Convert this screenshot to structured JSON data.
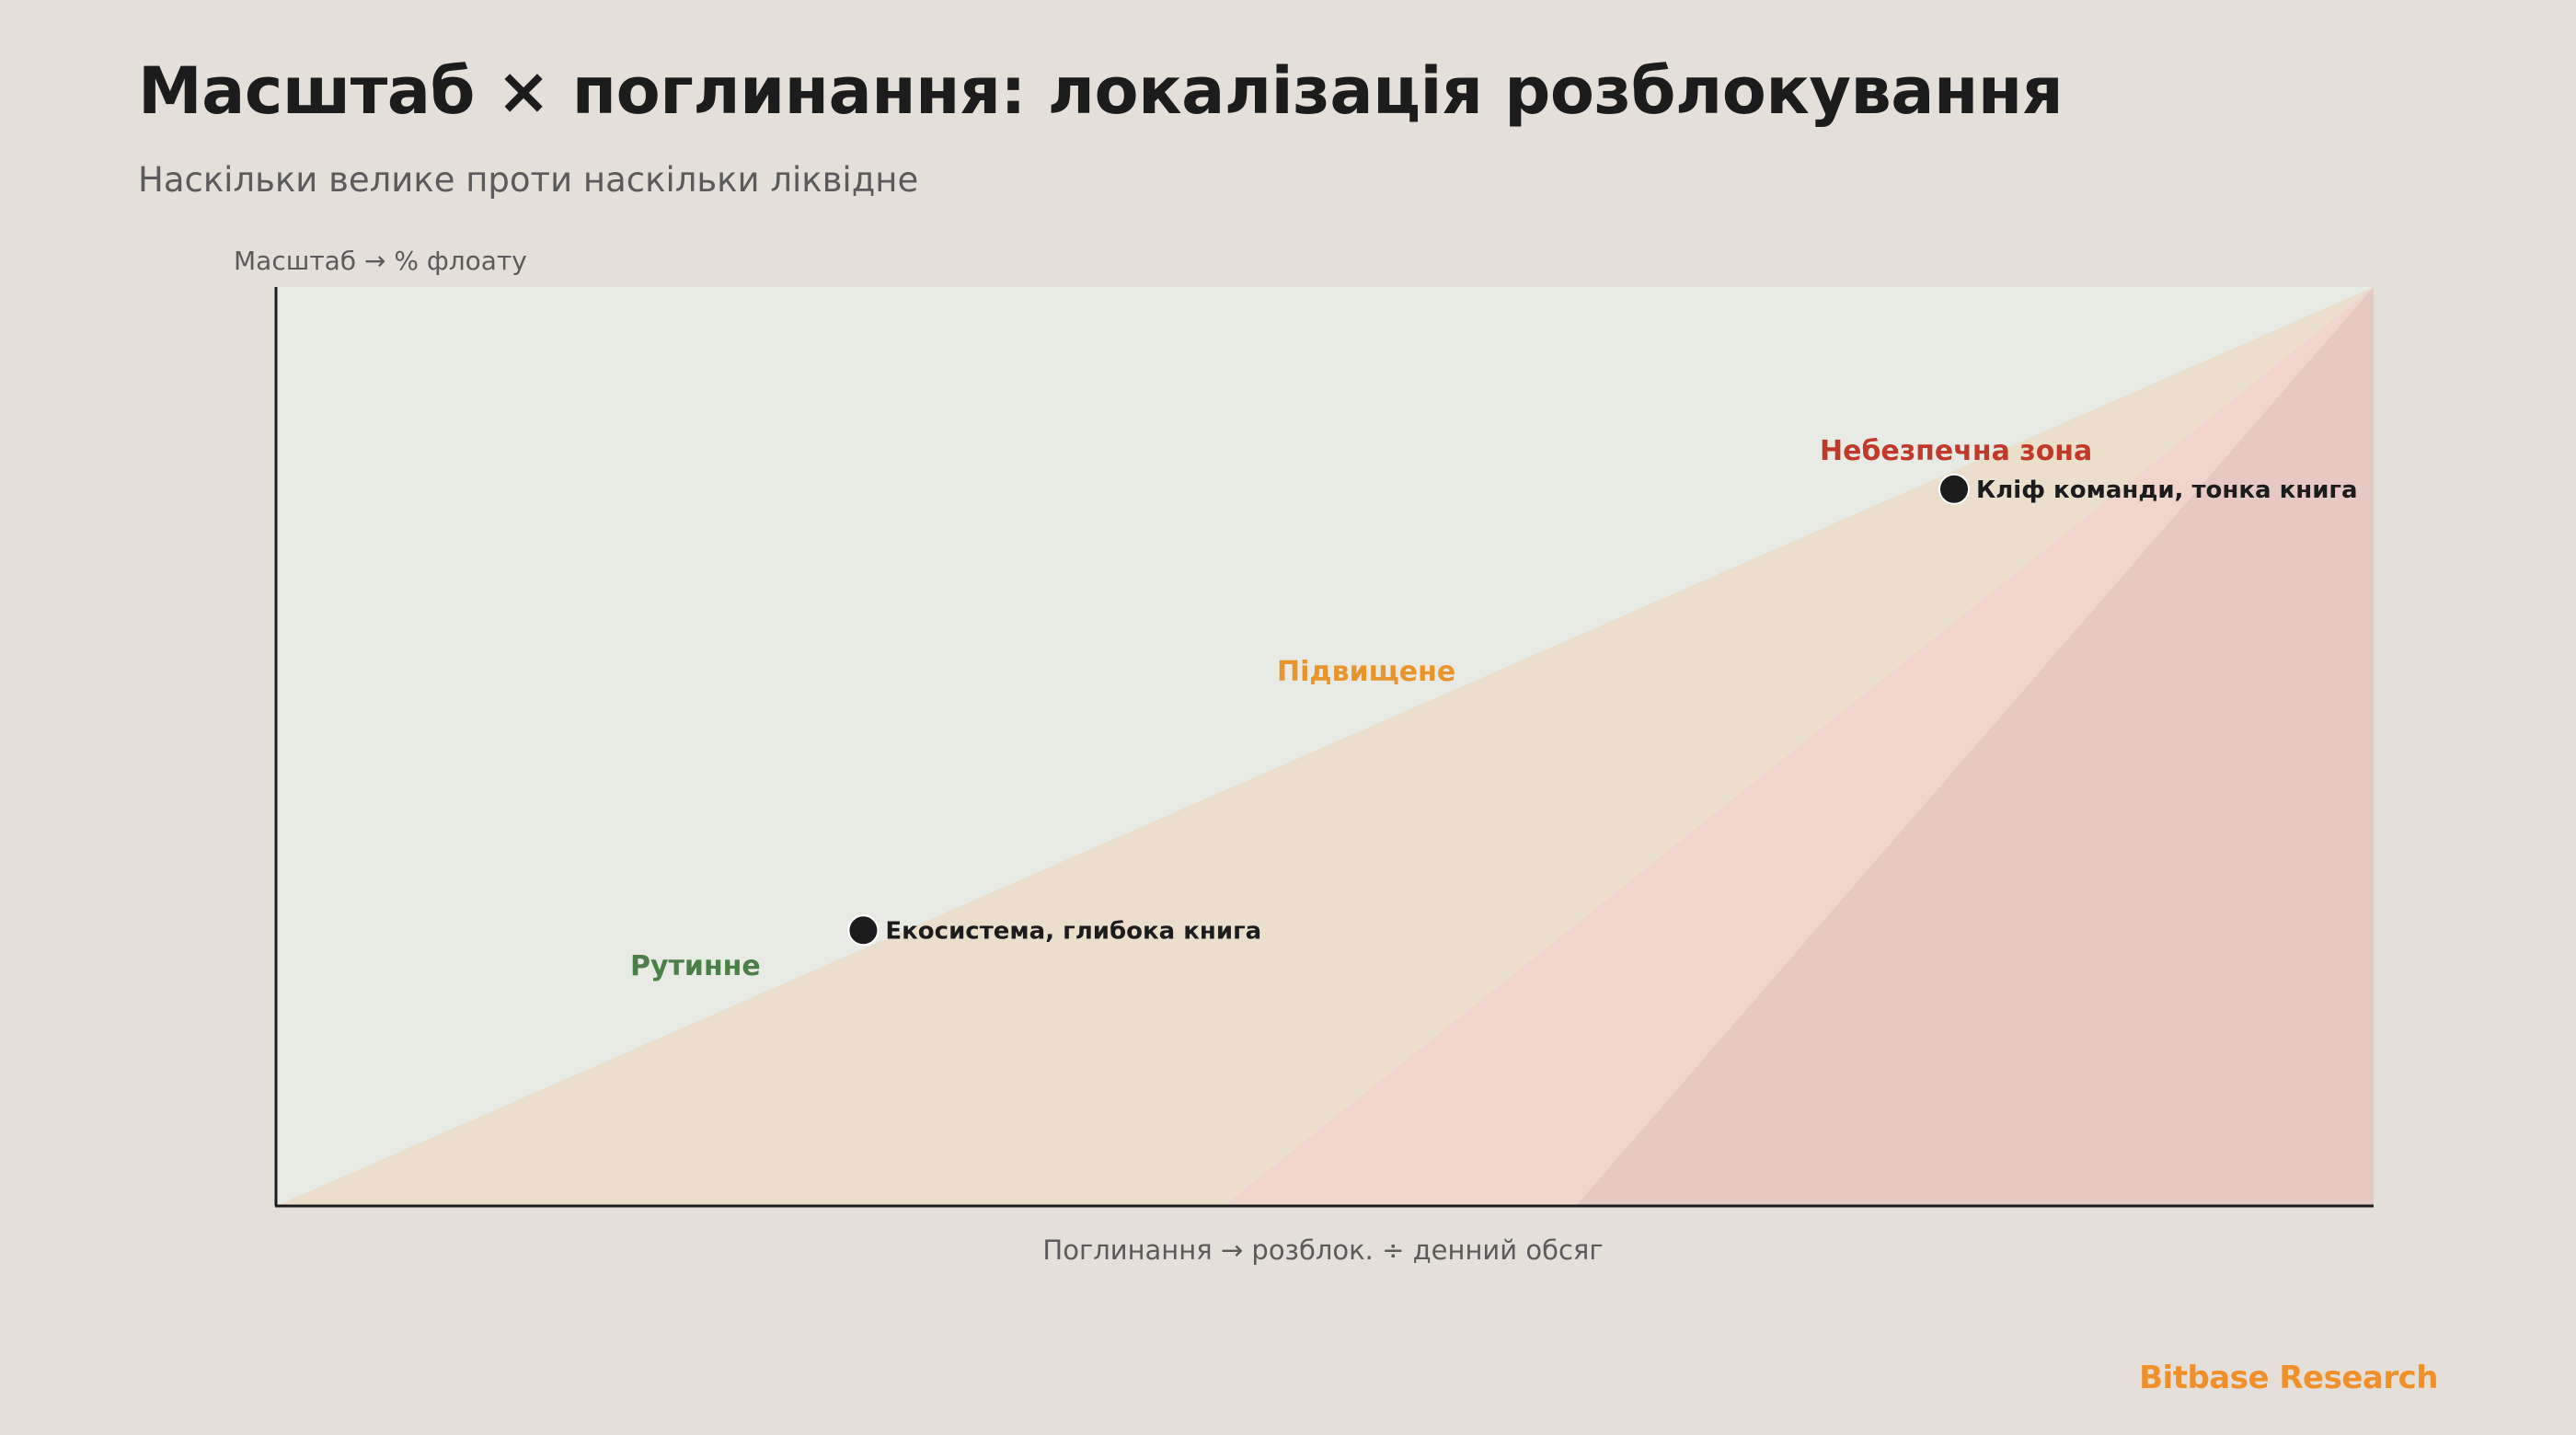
{
  "header": {
    "title": "Масштаб × поглинання: локалізація розблокування",
    "subtitle": "Наскільки велике проти наскільки ліквідне"
  },
  "footer": {
    "brand": "Bitbase Research"
  },
  "chart_data": {
    "type": "scatter",
    "ylabel": "Масштаб →  % флоату",
    "xlabel": "Поглинання →  розблок. ÷ денний обсяг",
    "xlim": [
      0,
      1
    ],
    "ylim": [
      0,
      1
    ],
    "zones": [
      {
        "name": "Рутинне",
        "color": "#4a7f47",
        "fill": "#e7ebe4"
      },
      {
        "name": "Підвищене",
        "color": "#e8952e",
        "fill": "#ebdfcc"
      },
      {
        "name": "Небезпечна зона",
        "color": "#c0392b",
        "fill": "#efd5cc"
      }
    ],
    "points": [
      {
        "label": "Екосистема, глибока книга",
        "x": 0.28,
        "y": 0.3
      },
      {
        "label": "Кліф команди, тонка книга",
        "x": 0.8,
        "y": 0.78
      }
    ],
    "grid": false,
    "colors": {
      "point": "#1c1c1c",
      "axis": "#1c1c1c",
      "danger_core": "#e6c9c3"
    }
  }
}
